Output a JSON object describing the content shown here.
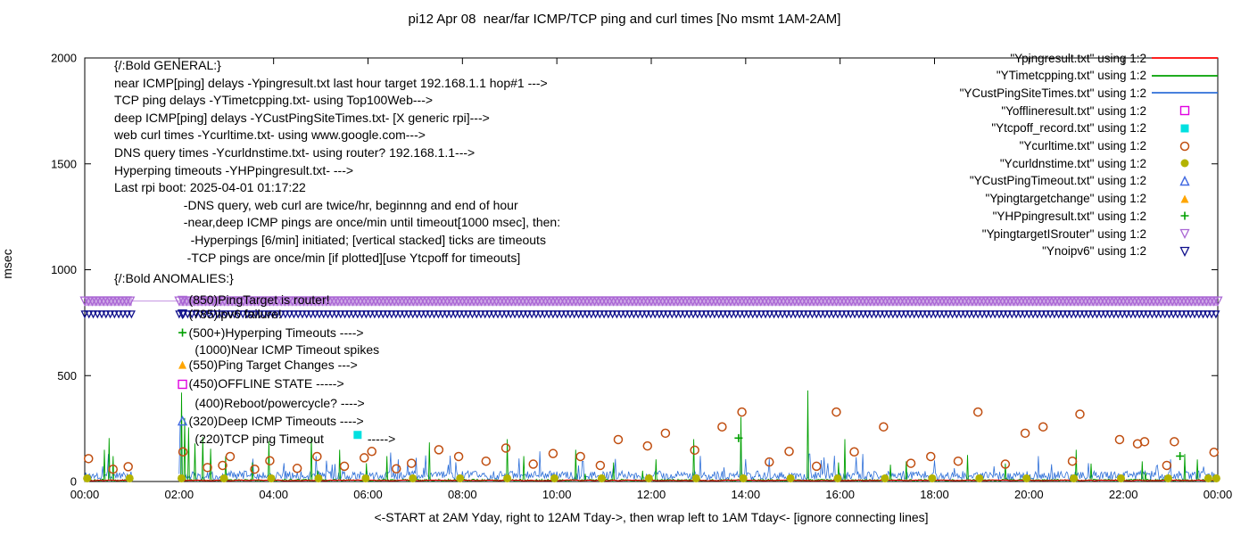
{
  "chart_data": {
    "type": "line+scatter",
    "title": "pi12 Apr 08  near/far ICMP/TCP ping and curl times [No msmt 1AM-2AM]",
    "ylabel": "msec",
    "xlabel": "<-START at 2AM Yday, right to 12AM Tday->, then wrap left to 1AM Tday<- [ignore connecting lines]",
    "ylim": [
      0,
      2000
    ],
    "xlim_hours": [
      0,
      24
    ],
    "x_tick_labels": [
      "00:00",
      "02:00",
      "04:00",
      "06:00",
      "08:00",
      "10:00",
      "12:00",
      "14:00",
      "16:00",
      "18:00",
      "20:00",
      "22:00",
      "00:00"
    ],
    "y_ticks": [
      0,
      500,
      1000,
      1500,
      2000
    ],
    "y_tick_labels": [
      "0",
      "500",
      "1000",
      "1500",
      "2000"
    ],
    "measurement_gap_hours": [
      1,
      2
    ],
    "segments": [
      [
        0,
        1
      ],
      [
        2,
        24
      ]
    ],
    "seed": 1337,
    "grid": false,
    "legend_position": "outside-top-right",
    "colors": {
      "red": "#ff0000",
      "green": "#00a000",
      "blue": "#2e6fd8",
      "magenta": "#e000e0",
      "cyan": "#00e0e0",
      "curl_orange": "#c04e10",
      "olive": "#b3b300",
      "timeout_blue": "#4169e1",
      "orange": "#ffa500",
      "violet": "#aa66d4",
      "navy": "#10108c"
    },
    "legend": [
      {
        "label": "\"Ypingresult.txt\" using 1:2",
        "marker": "line",
        "color": "#ff0000"
      },
      {
        "label": "\"YTimetcpping.txt\" using 1:2",
        "marker": "line",
        "color": "#00a000"
      },
      {
        "label": "\"YCustPingSiteTimes.txt\" using 1:2",
        "marker": "line",
        "color": "#2e6fd8"
      },
      {
        "label": "\"Yofflineresult.txt\" using 1:2",
        "marker": "square-open",
        "color": "#e000e0"
      },
      {
        "label": "\"Ytcpoff_record.txt\" using 1:2",
        "marker": "square-filled",
        "color": "#00e0e0"
      },
      {
        "label": "\"Ycurltime.txt\" using 1:2",
        "marker": "circle-open",
        "color": "#c04e10"
      },
      {
        "label": "\"Ycurldnstime.txt\" using 1:2",
        "marker": "circle-filled",
        "color": "#b3b300"
      },
      {
        "label": "\"YCustPingTimeout.txt\" using 1:2",
        "marker": "triangle-up-open",
        "color": "#4169e1"
      },
      {
        "label": "\"Ypingtargetchange\" using 1:2",
        "marker": "triangle-up-filled",
        "color": "#ffa500"
      },
      {
        "label": "\"YHPpingresult.txt\" using 1:2",
        "marker": "plus",
        "color": "#00a000"
      },
      {
        "label": "\"YpingtargetISrouter\" using 1:2",
        "marker": "triangle-down-open",
        "color": "#aa66d4"
      },
      {
        "label": "\"Ynoipv6\" using 1:2",
        "marker": "triangle-down-open",
        "color": "#10108c"
      }
    ],
    "general_text": [
      "{/:Bold GENERAL:}",
      "near ICMP[ping] delays -Ypingresult.txt last hour target 192.168.1.1 hop#1 --->",
      "TCP ping delays -YTimetcpping.txt- using Top100Web--->",
      "deep ICMP[ping] delays -YCustPingSiteTimes.txt- [X generic rpi]--->",
      "web curl times -Ycurltime.txt- using www.google.com--->",
      "DNS query times -Ycurldnstime.txt- using router? 192.168.1.1--->",
      "Hyperping timeouts -YHPpingresult.txt- --->",
      "Last rpi boot: 2025-04-01 01:17:22",
      "                    -DNS query, web curl are twice/hr, beginnng and end of hour",
      "                    -near,deep ICMP pings are once/min until timeout[1000 msec], then:",
      "                      -Hyperpings [6/min] initiated; [vertical stacked] ticks are timeouts",
      "                     -TCP pings are once/min [if plotted][use Ytcpoff for timeouts]"
    ],
    "anomaly_header": "{/:Bold ANOMALIES:}",
    "anomalies": [
      {
        "marker": "triangle-down-open",
        "color": "#aa66d4",
        "text": "(850)PingTarget is router!",
        "x_h": 2.07,
        "y_msec": 855
      },
      {
        "marker": "triangle-down-open",
        "color": "#10108c",
        "text": "(785)ipv6 failure!",
        "x_h": 2.07,
        "y_msec": 791
      },
      {
        "marker": "plus",
        "color": "#00a000",
        "text": "(500+)Hyperping Timeouts ---->",
        "x_h": 2.07,
        "y_msec": 703
      },
      {
        "marker": null,
        "color": null,
        "text": "(1000)Near ICMP Timeout spikes",
        "x_h": 2.2,
        "y_msec": 619
      },
      {
        "marker": "triangle-up-filled",
        "color": "#ffa500",
        "text": "(550)Ping Target Changes --->",
        "x_h": 2.07,
        "y_msec": 551
      },
      {
        "marker": "square-open",
        "color": "#e000e0",
        "text": "(450)OFFLINE STATE ----->",
        "x_h": 2.07,
        "y_msec": 459
      },
      {
        "marker": null,
        "color": null,
        "text": "(400)Reboot/powercycle? ---->",
        "x_h": 2.2,
        "y_msec": 370
      },
      {
        "marker": "triangle-up-open",
        "color": "#4169e1",
        "text": "(320)Deep ICMP Timeouts ---->",
        "x_h": 2.07,
        "y_msec": 286
      },
      {
        "marker": null,
        "color": null,
        "text": "(220)TCP ping Timeout",
        "x_h": 2.2,
        "y_msec": 202,
        "suffix_text": "----->",
        "suffix_x_h": 5.95
      }
    ],
    "series_spec": {
      "red": {
        "name": "Ypingresult.txt",
        "step_min": 6,
        "base": 3.5,
        "noise": 4,
        "p": 0,
        "smin": 0,
        "smax": 0,
        "tol": 0.01,
        "width": 1.0,
        "spikes": []
      },
      "blue": {
        "name": "YCustPingSiteTimes.txt",
        "step_min": 1.2,
        "base": 8,
        "noise": 42,
        "p": 0.03,
        "smin": 60,
        "smax": 145,
        "tol": 0.012,
        "width": 0.8,
        "spikes": [
          [
            0.5,
            130
          ],
          [
            2.03,
            265
          ],
          [
            7.02,
            112
          ],
          [
            10.55,
            95
          ],
          [
            13.9,
            160
          ],
          [
            15.35,
            130
          ],
          [
            18.0,
            100
          ],
          [
            20.2,
            120
          ],
          [
            23.0,
            105
          ]
        ]
      },
      "green": {
        "name": "YTimetcpping.txt",
        "step_min": 1,
        "base": 2,
        "noise": 9,
        "p": 0.012,
        "smin": 35,
        "smax": 105,
        "tol": 0.009,
        "width": 0.9,
        "spikes": [
          [
            0.42,
            150
          ],
          [
            0.52,
            205
          ],
          [
            0.6,
            120
          ],
          [
            2.05,
            420
          ],
          [
            2.12,
            300
          ],
          [
            2.2,
            255
          ],
          [
            2.33,
            180
          ],
          [
            2.5,
            210
          ],
          [
            2.67,
            155
          ],
          [
            2.98,
            120
          ],
          [
            3.55,
            90
          ],
          [
            3.9,
            190
          ],
          [
            4.8,
            210
          ],
          [
            5.4,
            150
          ],
          [
            6.4,
            120
          ],
          [
            7.3,
            185
          ],
          [
            8.95,
            200
          ],
          [
            9.3,
            120
          ],
          [
            10.4,
            150
          ],
          [
            11.2,
            90
          ],
          [
            12.1,
            105
          ],
          [
            12.9,
            200
          ],
          [
            13.9,
            305
          ],
          [
            15.32,
            430
          ],
          [
            16.1,
            200
          ],
          [
            17.4,
            95
          ],
          [
            18.7,
            125
          ],
          [
            19.5,
            85
          ],
          [
            21.0,
            150
          ],
          [
            22.4,
            95
          ],
          [
            23.3,
            130
          ]
        ]
      }
    },
    "curl_points": [
      [
        0.08,
        108
      ],
      [
        0.6,
        58
      ],
      [
        0.92,
        70
      ],
      [
        2.08,
        140
      ],
      [
        2.6,
        66
      ],
      [
        2.92,
        76
      ],
      [
        3.08,
        118
      ],
      [
        3.6,
        58
      ],
      [
        3.92,
        98
      ],
      [
        4.5,
        62
      ],
      [
        4.92,
        118
      ],
      [
        5.5,
        72
      ],
      [
        5.92,
        112
      ],
      [
        6.08,
        142
      ],
      [
        6.6,
        60
      ],
      [
        6.92,
        86
      ],
      [
        7.5,
        150
      ],
      [
        7.92,
        118
      ],
      [
        8.5,
        96
      ],
      [
        8.92,
        158
      ],
      [
        9.5,
        82
      ],
      [
        9.92,
        132
      ],
      [
        10.5,
        118
      ],
      [
        10.92,
        76
      ],
      [
        11.3,
        198
      ],
      [
        11.92,
        168
      ],
      [
        12.3,
        228
      ],
      [
        12.92,
        148
      ],
      [
        13.5,
        258
      ],
      [
        13.92,
        328
      ],
      [
        14.5,
        92
      ],
      [
        14.92,
        142
      ],
      [
        15.5,
        72
      ],
      [
        15.92,
        328
      ],
      [
        16.3,
        140
      ],
      [
        16.92,
        258
      ],
      [
        17.5,
        86
      ],
      [
        17.92,
        118
      ],
      [
        18.5,
        96
      ],
      [
        18.92,
        328
      ],
      [
        19.5,
        82
      ],
      [
        19.92,
        228
      ],
      [
        20.3,
        258
      ],
      [
        20.92,
        96
      ],
      [
        21.08,
        318
      ],
      [
        21.92,
        198
      ],
      [
        22.3,
        178
      ],
      [
        22.45,
        188
      ],
      [
        22.92,
        76
      ],
      [
        23.08,
        188
      ],
      [
        23.92,
        138
      ]
    ],
    "dns_hours": [
      0.05,
      0.95,
      2.05,
      2.95,
      3.95,
      4.95,
      5.95,
      6.95,
      7.95,
      8.95,
      9.95,
      10.95,
      11.95,
      12.95,
      13.95,
      14.95,
      15.95,
      16.95,
      17.95,
      18.95,
      19.95,
      20.95,
      21.95,
      22.95,
      23.8,
      23.97
    ],
    "dns_msec": 15,
    "tcpoff_points": [
      [
        5.78,
        220
      ]
    ],
    "hp_points": [
      [
        13.85,
        205
      ],
      [
        23.2,
        120
      ]
    ],
    "router_band": {
      "y_msec": 852,
      "segments": [
        [
          0,
          1
        ],
        [
          2,
          24
        ]
      ],
      "tri_step_h": 0.08,
      "tri_size": 9,
      "rect_height": 11
    },
    "noipv6_row": {
      "y_msec": 790,
      "segments": [
        [
          0,
          1
        ],
        [
          2,
          24
        ]
      ],
      "tri_step_h": 0.09,
      "tri_size": 7
    }
  }
}
